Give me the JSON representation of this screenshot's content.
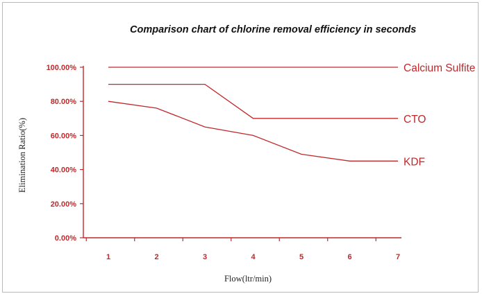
{
  "chart_data": {
    "type": "line",
    "title": "Comparison chart of chlorine removal efficiency in seconds",
    "xlabel": "Flow(ltr/min)",
    "ylabel": "Elimination Ratio(%)",
    "x": [
      1,
      2,
      3,
      4,
      5,
      6,
      7
    ],
    "xtick_labels": [
      "1",
      "2",
      "3",
      "4",
      "5",
      "6",
      "7"
    ],
    "ytick_labels": [
      "0.00%",
      "20.00%",
      "40.00%",
      "60.00%",
      "80.00%",
      "100.00%"
    ],
    "ylim": [
      0,
      100
    ],
    "series": [
      {
        "name": "Calcium Sulfite",
        "x": [
          1,
          7
        ],
        "values": [
          100,
          100
        ]
      },
      {
        "name": "CTO",
        "x": [
          1,
          3,
          4,
          7
        ],
        "values": [
          90,
          90,
          70,
          70
        ]
      },
      {
        "name": "KDF",
        "x": [
          1,
          2,
          3,
          4,
          5,
          6,
          7
        ],
        "values": [
          80,
          76,
          65,
          60,
          49,
          45,
          45
        ]
      }
    ],
    "colors": {
      "series": "#c0282a",
      "axis": "#c0282a"
    },
    "grid": false,
    "legend": "labels at line ends"
  }
}
